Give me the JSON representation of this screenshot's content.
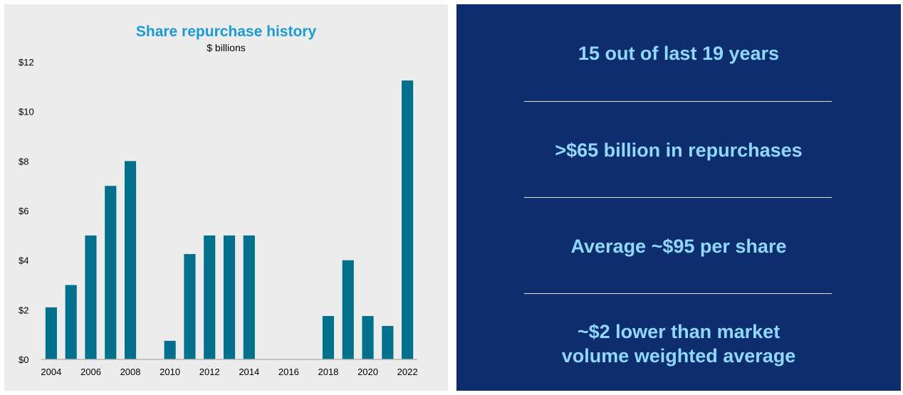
{
  "chart_data": {
    "type": "bar",
    "title": "Share repurchase history",
    "subtitle": "$ billions",
    "categories": [
      "2004",
      "2005",
      "2006",
      "2007",
      "2008",
      "2009",
      "2010",
      "2011",
      "2012",
      "2013",
      "2014",
      "2015",
      "2016",
      "2017",
      "2018",
      "2019",
      "2020",
      "2021",
      "2022"
    ],
    "x_tick_labels": [
      "2004",
      "",
      "2006",
      "",
      "2008",
      "",
      "2010",
      "",
      "2012",
      "",
      "2014",
      "",
      "2016",
      "",
      "2018",
      "",
      "2020",
      "",
      "2022"
    ],
    "values": [
      2.1,
      3.0,
      5.0,
      7.0,
      8.0,
      0,
      0.75,
      4.25,
      5.0,
      5.0,
      5.0,
      0,
      0,
      0,
      1.75,
      4.0,
      1.75,
      1.35,
      11.25
    ],
    "ylim": [
      0,
      12
    ],
    "yticks": [
      0,
      2,
      4,
      6,
      8,
      10,
      12
    ],
    "ytick_labels": [
      "$0",
      "$2",
      "$4",
      "$6",
      "$8",
      "$10",
      "$12"
    ],
    "bar_color": "#00708c",
    "title_color": "#1a9ad6",
    "grid": false
  },
  "stats": {
    "items": [
      [
        "15 out of last 19 years"
      ],
      [
        ">$65 billion in repurchases"
      ],
      [
        "Average ~$95 per share"
      ],
      [
        "~$2 lower than market",
        "volume weighted average"
      ]
    ],
    "text_color": "#8fd8ff",
    "background": "#0d2d6e"
  }
}
